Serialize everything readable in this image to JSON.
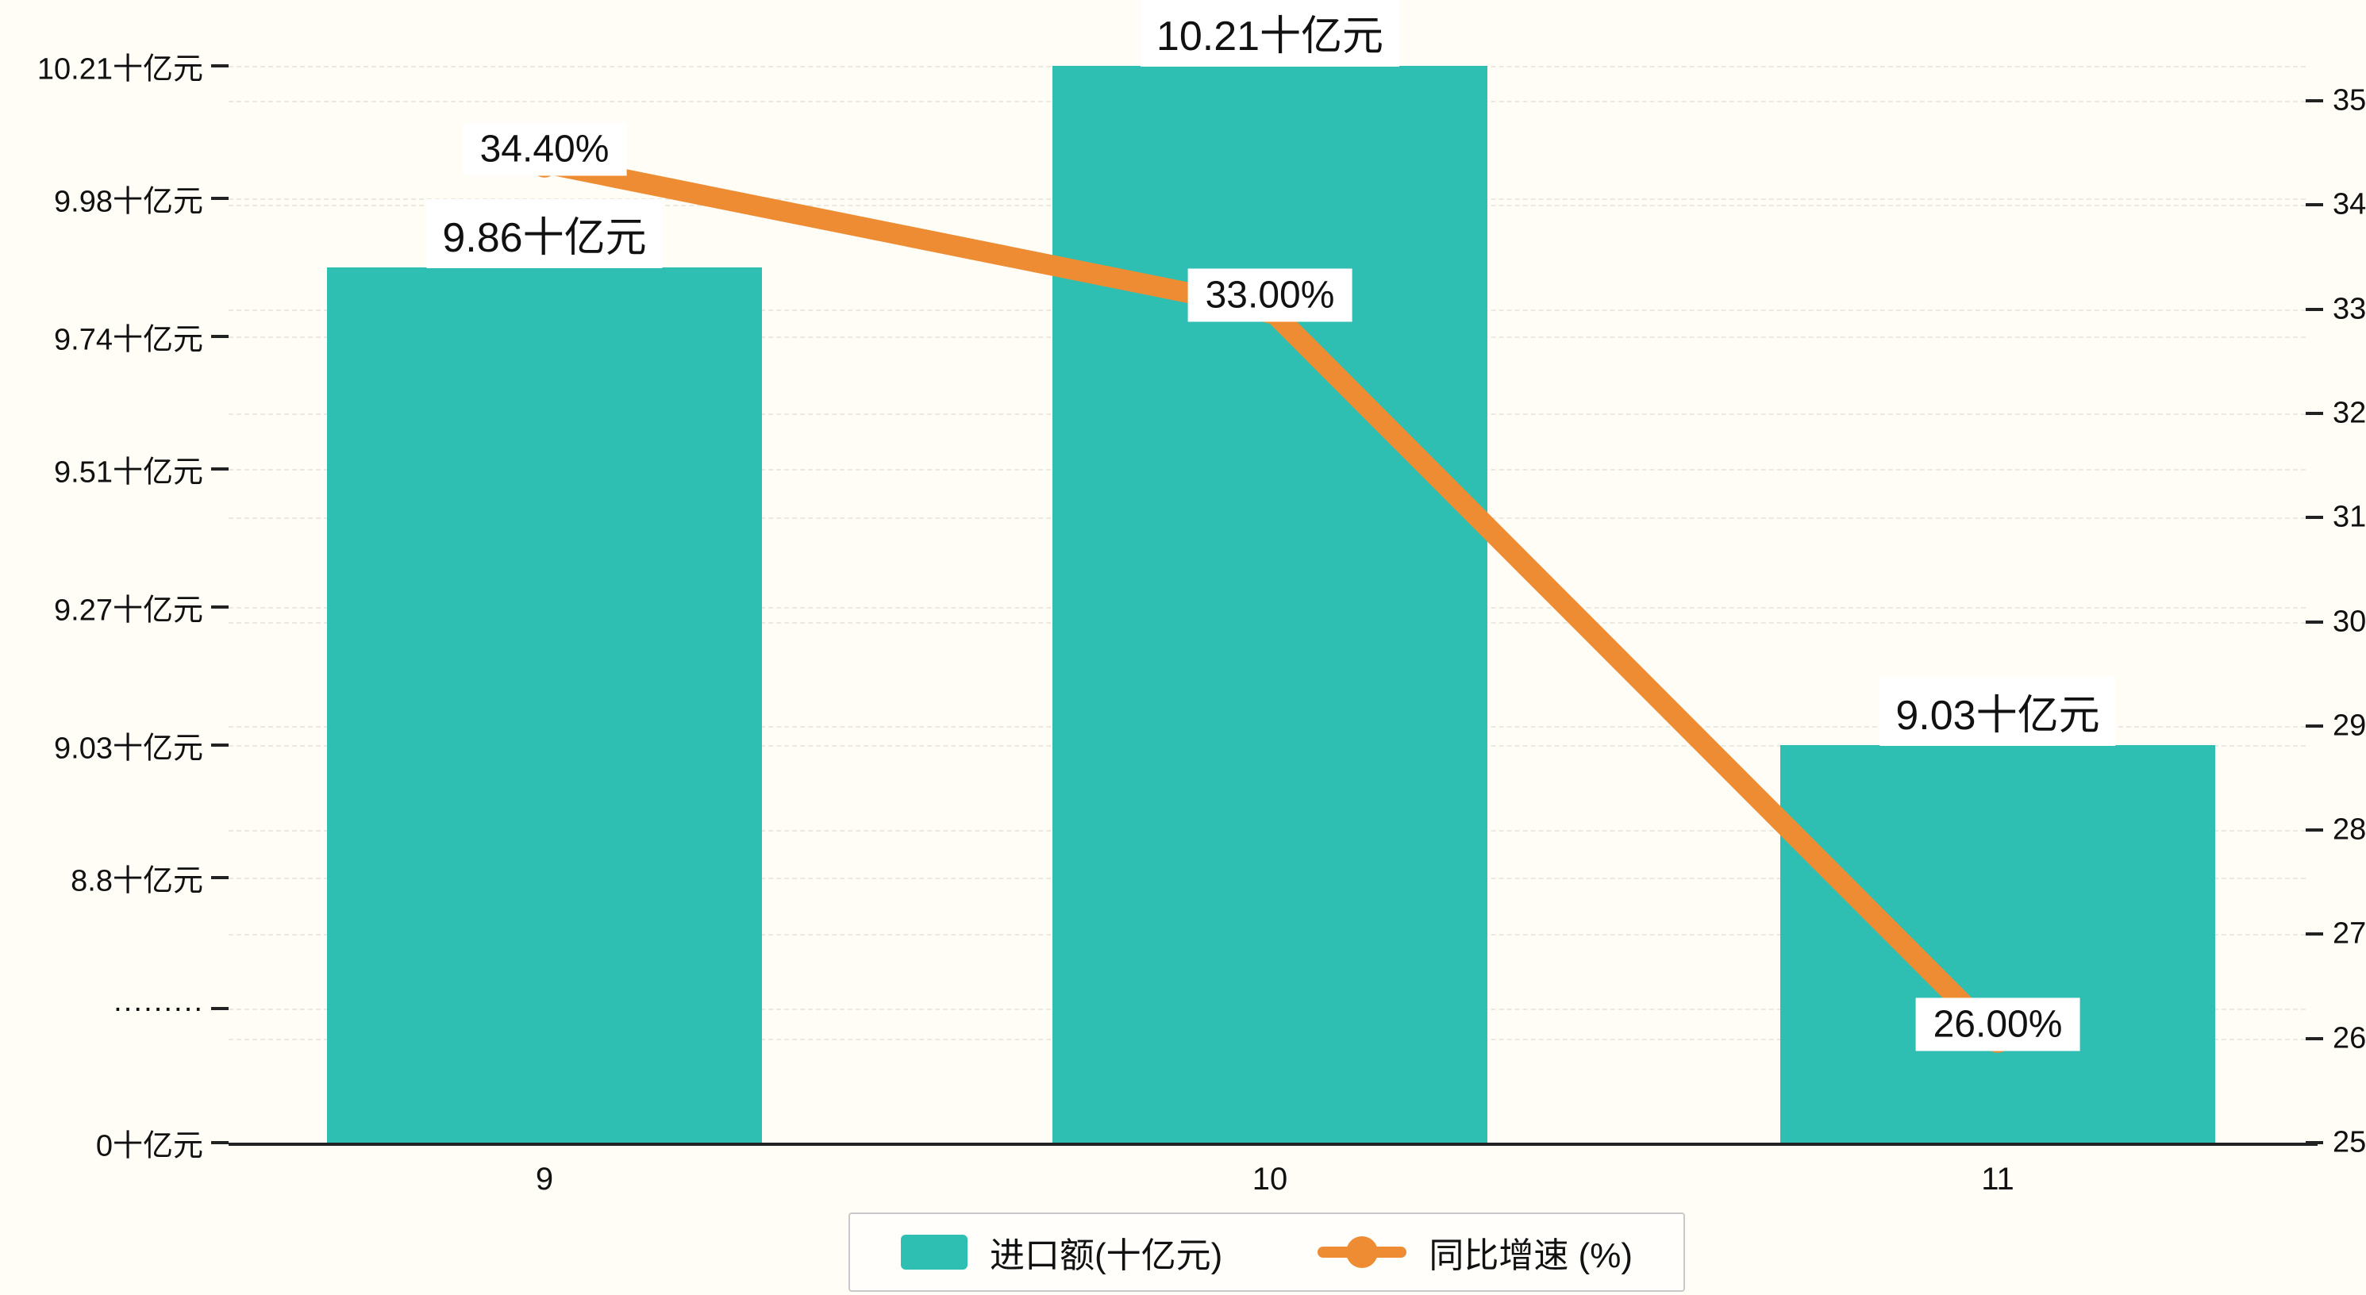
{
  "colors": {
    "background": "#fffdf6",
    "bar": "#2fbfb2",
    "line": "#ee8c33",
    "label_bg": "#ffffff",
    "axis": "#222222",
    "grid": "#ebebeb"
  },
  "chart_data": {
    "type": "bar",
    "categories": [
      "9",
      "10",
      "11"
    ],
    "series": [
      {
        "name": "进口额(十亿元)",
        "type": "bar",
        "axis": "left",
        "values": [
          9.86,
          10.21,
          9.03
        ],
        "labels": [
          "9.86十亿元",
          "10.21十亿元",
          "9.03十亿元"
        ],
        "color": "#2fbfb2"
      },
      {
        "name": "同比增速 (%)",
        "type": "line",
        "axis": "right",
        "values": [
          34.4,
          33.0,
          26.0
        ],
        "labels": [
          "34.40%",
          "33.00%",
          "26.00%"
        ],
        "color": "#ee8c33"
      }
    ],
    "left_axis": {
      "unit": "十亿元",
      "broken": true,
      "tick_values": [
        10.21,
        9.98,
        9.74,
        9.51,
        9.27,
        9.03,
        8.8
      ],
      "tick_labels": [
        "10.21十亿元",
        "9.98十亿元",
        "9.74十亿元",
        "9.51十亿元",
        "9.27十亿元",
        "9.03十亿元",
        "8.8十亿元"
      ],
      "break_label": "·········",
      "zero_label": "0十亿元"
    },
    "right_axis": {
      "min": 25,
      "max": 35,
      "tick_values": [
        35,
        34,
        33,
        32,
        31,
        30,
        29,
        28,
        27,
        26,
        25
      ],
      "tick_labels": [
        "35",
        "34",
        "33",
        "32",
        "31",
        "30",
        "29",
        "28",
        "27",
        "26",
        "25"
      ]
    },
    "legend": [
      {
        "label": "进口额(十亿元)",
        "marker": "bar",
        "color": "#2fbfb2"
      },
      {
        "label": "同比增速 (%)",
        "marker": "line",
        "color": "#ee8c33"
      }
    ],
    "grid": {
      "horizontal_dashed": true
    },
    "legend_position": "bottom"
  }
}
